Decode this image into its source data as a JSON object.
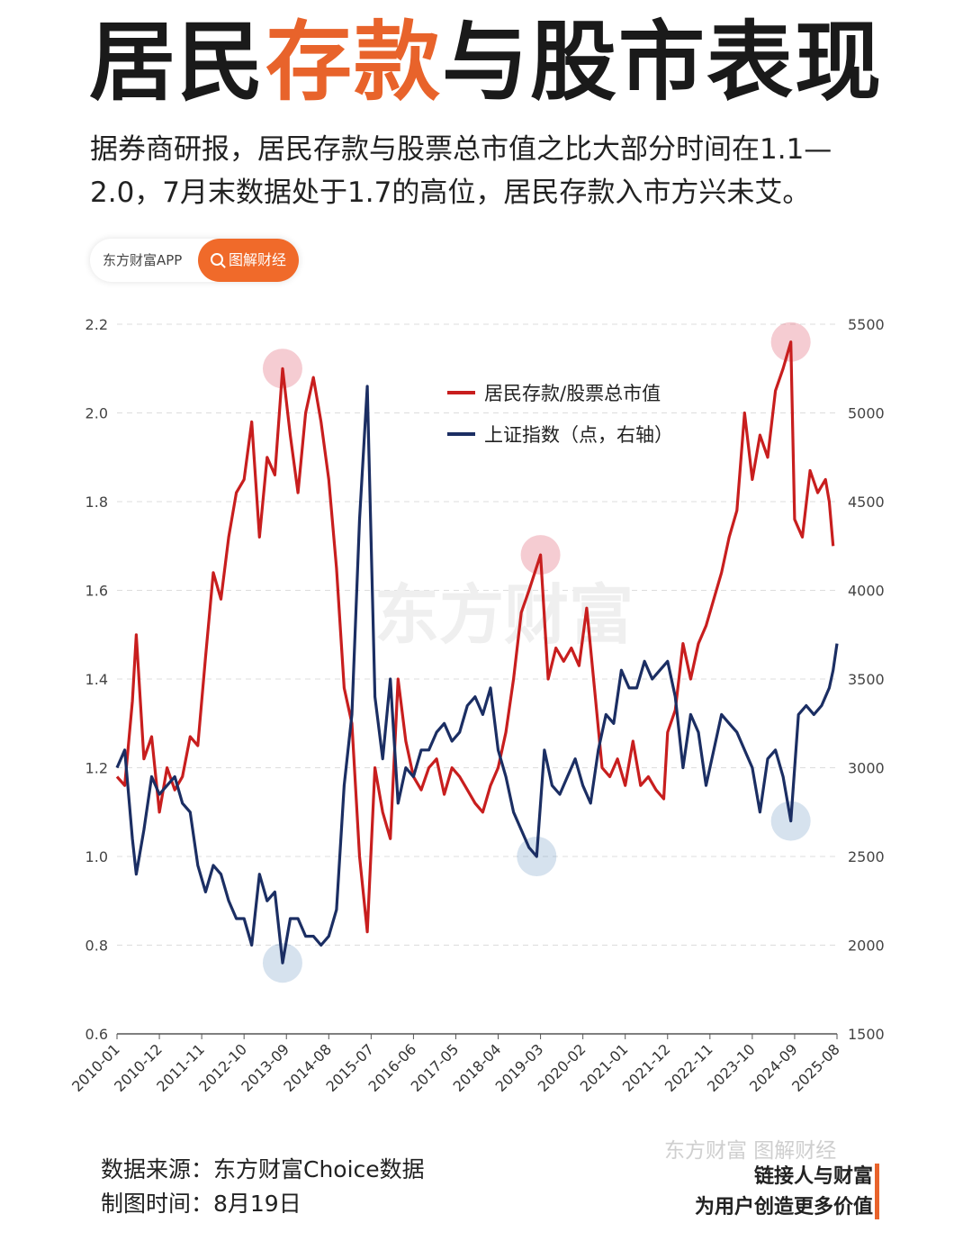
{
  "header": {
    "title_part1": "居民",
    "title_highlight": "存款",
    "title_part2": "与股市表现",
    "subtitle": "据券商研报，居民存款与股票总市值之比大部分时间在1.1—2.0，7月末数据处于1.7的高位，居民存款入市方兴未艾。"
  },
  "badge": {
    "brand": "东方财富APP",
    "tag": "图解财经",
    "tag_icon": "search-icon"
  },
  "colors": {
    "accent": "#e8632b",
    "ratio_line": "#c81e1e",
    "index_line": "#1b2e63"
  },
  "chart_data": {
    "type": "line",
    "title": "",
    "x_tick_labels": [
      "2010-01",
      "2010-12",
      "2011-11",
      "2012-10",
      "2013-09",
      "2014-08",
      "2015-07",
      "2016-06",
      "2017-05",
      "2018-04",
      "2019-03",
      "2020-02",
      "2021-01",
      "2021-12",
      "2022-11",
      "2023-10",
      "2024-09",
      "2025-08"
    ],
    "y_left": {
      "ticks": [
        "0.6",
        "0.8",
        "1.0",
        "1.2",
        "1.4",
        "1.6",
        "1.8",
        "2.0",
        "2.2"
      ],
      "range": [
        0.6,
        2.2
      ]
    },
    "y_right": {
      "ticks": [
        "1500",
        "2000",
        "2500",
        "3000",
        "3500",
        "4000",
        "4500",
        "5000",
        "5500"
      ],
      "range": [
        1500,
        5500
      ]
    },
    "grid": "horizontal dashed",
    "legend_position": "top-center",
    "series": [
      {
        "name": "居民存款/股票总市值",
        "axis": "left",
        "color": "#c81e1e",
        "points": [
          [
            "2010-01",
            1.18
          ],
          [
            "2010-03",
            1.16
          ],
          [
            "2010-05",
            1.35
          ],
          [
            "2010-06",
            1.5
          ],
          [
            "2010-08",
            1.22
          ],
          [
            "2010-10",
            1.27
          ],
          [
            "2010-12",
            1.1
          ],
          [
            "2011-02",
            1.2
          ],
          [
            "2011-04",
            1.15
          ],
          [
            "2011-06",
            1.18
          ],
          [
            "2011-08",
            1.27
          ],
          [
            "2011-10",
            1.25
          ],
          [
            "2011-12",
            1.45
          ],
          [
            "2012-02",
            1.64
          ],
          [
            "2012-04",
            1.58
          ],
          [
            "2012-06",
            1.72
          ],
          [
            "2012-08",
            1.82
          ],
          [
            "2012-10",
            1.85
          ],
          [
            "2012-12",
            1.98
          ],
          [
            "2013-02",
            1.72
          ],
          [
            "2013-04",
            1.9
          ],
          [
            "2013-06",
            1.86
          ],
          [
            "2013-08",
            2.1
          ],
          [
            "2013-10",
            1.95
          ],
          [
            "2013-12",
            1.82
          ],
          [
            "2014-02",
            2.0
          ],
          [
            "2014-04",
            2.08
          ],
          [
            "2014-06",
            1.98
          ],
          [
            "2014-08",
            1.85
          ],
          [
            "2014-10",
            1.65
          ],
          [
            "2014-12",
            1.38
          ],
          [
            "2015-02",
            1.3
          ],
          [
            "2015-04",
            1.0
          ],
          [
            "2015-06",
            0.83
          ],
          [
            "2015-08",
            1.2
          ],
          [
            "2015-10",
            1.1
          ],
          [
            "2015-12",
            1.04
          ],
          [
            "2016-02",
            1.4
          ],
          [
            "2016-04",
            1.26
          ],
          [
            "2016-06",
            1.18
          ],
          [
            "2016-08",
            1.15
          ],
          [
            "2016-10",
            1.2
          ],
          [
            "2016-12",
            1.22
          ],
          [
            "2017-02",
            1.14
          ],
          [
            "2017-04",
            1.2
          ],
          [
            "2017-06",
            1.18
          ],
          [
            "2017-08",
            1.15
          ],
          [
            "2017-10",
            1.12
          ],
          [
            "2017-12",
            1.1
          ],
          [
            "2018-02",
            1.16
          ],
          [
            "2018-04",
            1.2
          ],
          [
            "2018-06",
            1.28
          ],
          [
            "2018-08",
            1.4
          ],
          [
            "2018-10",
            1.55
          ],
          [
            "2018-12",
            1.6
          ],
          [
            "2019-03",
            1.68
          ],
          [
            "2019-05",
            1.4
          ],
          [
            "2019-07",
            1.47
          ],
          [
            "2019-09",
            1.44
          ],
          [
            "2019-11",
            1.47
          ],
          [
            "2020-01",
            1.43
          ],
          [
            "2020-03",
            1.56
          ],
          [
            "2020-05",
            1.38
          ],
          [
            "2020-07",
            1.2
          ],
          [
            "2020-09",
            1.18
          ],
          [
            "2020-11",
            1.22
          ],
          [
            "2021-01",
            1.16
          ],
          [
            "2021-03",
            1.26
          ],
          [
            "2021-05",
            1.16
          ],
          [
            "2021-07",
            1.18
          ],
          [
            "2021-09",
            1.15
          ],
          [
            "2021-11",
            1.13
          ],
          [
            "2021-12",
            1.28
          ],
          [
            "2022-02",
            1.33
          ],
          [
            "2022-04",
            1.48
          ],
          [
            "2022-06",
            1.4
          ],
          [
            "2022-08",
            1.48
          ],
          [
            "2022-10",
            1.52
          ],
          [
            "2022-12",
            1.58
          ],
          [
            "2023-02",
            1.64
          ],
          [
            "2023-04",
            1.72
          ],
          [
            "2023-06",
            1.78
          ],
          [
            "2023-08",
            2.0
          ],
          [
            "2023-10",
            1.85
          ],
          [
            "2023-12",
            1.95
          ],
          [
            "2024-02",
            1.9
          ],
          [
            "2024-04",
            2.05
          ],
          [
            "2024-06",
            2.1
          ],
          [
            "2024-08",
            2.16
          ],
          [
            "2024-09",
            1.76
          ],
          [
            "2024-11",
            1.72
          ],
          [
            "2025-01",
            1.87
          ],
          [
            "2025-03",
            1.82
          ],
          [
            "2025-05",
            1.85
          ],
          [
            "2025-06",
            1.8
          ],
          [
            "2025-07",
            1.7
          ]
        ]
      },
      {
        "name": "上证指数（点，右轴）",
        "axis": "right",
        "color": "#1b2e63",
        "points": [
          [
            "2010-01",
            3000
          ],
          [
            "2010-03",
            3100
          ],
          [
            "2010-05",
            2600
          ],
          [
            "2010-06",
            2400
          ],
          [
            "2010-08",
            2650
          ],
          [
            "2010-10",
            2950
          ],
          [
            "2010-12",
            2850
          ],
          [
            "2011-02",
            2900
          ],
          [
            "2011-04",
            2950
          ],
          [
            "2011-06",
            2800
          ],
          [
            "2011-08",
            2750
          ],
          [
            "2011-10",
            2450
          ],
          [
            "2011-12",
            2300
          ],
          [
            "2012-02",
            2450
          ],
          [
            "2012-04",
            2400
          ],
          [
            "2012-06",
            2250
          ],
          [
            "2012-08",
            2150
          ],
          [
            "2012-10",
            2150
          ],
          [
            "2012-12",
            2000
          ],
          [
            "2013-02",
            2400
          ],
          [
            "2013-04",
            2250
          ],
          [
            "2013-06",
            2300
          ],
          [
            "2013-08",
            1900
          ],
          [
            "2013-10",
            2150
          ],
          [
            "2013-12",
            2150
          ],
          [
            "2014-02",
            2050
          ],
          [
            "2014-04",
            2050
          ],
          [
            "2014-06",
            2000
          ],
          [
            "2014-08",
            2050
          ],
          [
            "2014-10",
            2200
          ],
          [
            "2014-12",
            2900
          ],
          [
            "2015-02",
            3300
          ],
          [
            "2015-04",
            4400
          ],
          [
            "2015-06",
            5150
          ],
          [
            "2015-08",
            3400
          ],
          [
            "2015-10",
            3050
          ],
          [
            "2015-12",
            3500
          ],
          [
            "2016-02",
            2800
          ],
          [
            "2016-04",
            3000
          ],
          [
            "2016-06",
            2950
          ],
          [
            "2016-08",
            3100
          ],
          [
            "2016-10",
            3100
          ],
          [
            "2016-12",
            3200
          ],
          [
            "2017-02",
            3250
          ],
          [
            "2017-04",
            3150
          ],
          [
            "2017-06",
            3200
          ],
          [
            "2017-08",
            3350
          ],
          [
            "2017-10",
            3400
          ],
          [
            "2017-12",
            3300
          ],
          [
            "2018-02",
            3450
          ],
          [
            "2018-04",
            3100
          ],
          [
            "2018-06",
            2950
          ],
          [
            "2018-08",
            2750
          ],
          [
            "2018-10",
            2650
          ],
          [
            "2018-12",
            2550
          ],
          [
            "2019-02",
            2500
          ],
          [
            "2019-04",
            3100
          ],
          [
            "2019-06",
            2900
          ],
          [
            "2019-08",
            2850
          ],
          [
            "2019-10",
            2950
          ],
          [
            "2019-12",
            3050
          ],
          [
            "2020-02",
            2900
          ],
          [
            "2020-04",
            2800
          ],
          [
            "2020-06",
            3100
          ],
          [
            "2020-08",
            3300
          ],
          [
            "2020-10",
            3250
          ],
          [
            "2020-12",
            3550
          ],
          [
            "2021-02",
            3450
          ],
          [
            "2021-04",
            3450
          ],
          [
            "2021-06",
            3600
          ],
          [
            "2021-08",
            3500
          ],
          [
            "2021-10",
            3550
          ],
          [
            "2021-12",
            3600
          ],
          [
            "2022-02",
            3400
          ],
          [
            "2022-04",
            3000
          ],
          [
            "2022-06",
            3300
          ],
          [
            "2022-08",
            3200
          ],
          [
            "2022-10",
            2900
          ],
          [
            "2022-12",
            3100
          ],
          [
            "2023-02",
            3300
          ],
          [
            "2023-04",
            3250
          ],
          [
            "2023-06",
            3200
          ],
          [
            "2023-08",
            3100
          ],
          [
            "2023-10",
            3000
          ],
          [
            "2023-12",
            2750
          ],
          [
            "2024-02",
            3050
          ],
          [
            "2024-04",
            3100
          ],
          [
            "2024-06",
            2950
          ],
          [
            "2024-08",
            2700
          ],
          [
            "2024-10",
            3300
          ],
          [
            "2024-12",
            3350
          ],
          [
            "2025-02",
            3300
          ],
          [
            "2025-04",
            3350
          ],
          [
            "2025-06",
            3450
          ],
          [
            "2025-07",
            3550
          ],
          [
            "2025-08",
            3700
          ]
        ]
      }
    ],
    "highlights": [
      {
        "series": 0,
        "at": "2013-08",
        "value": 2.1
      },
      {
        "series": 0,
        "at": "2019-03",
        "value": 1.68
      },
      {
        "series": 0,
        "at": "2024-08",
        "value": 2.16
      },
      {
        "series": 1,
        "at": "2013-08",
        "value": 1900
      },
      {
        "series": 1,
        "at": "2019-02",
        "value": 2500
      },
      {
        "series": 1,
        "at": "2024-08",
        "value": 2700
      }
    ],
    "watermark": "东方财富"
  },
  "footer": {
    "source": "数据来源：东方财富Choice数据",
    "date": "制图时间：8月19日",
    "watermark": "东方财富 图解财经",
    "slogan1": "链接人与财富",
    "slogan2": "为用户创造更多价值"
  }
}
